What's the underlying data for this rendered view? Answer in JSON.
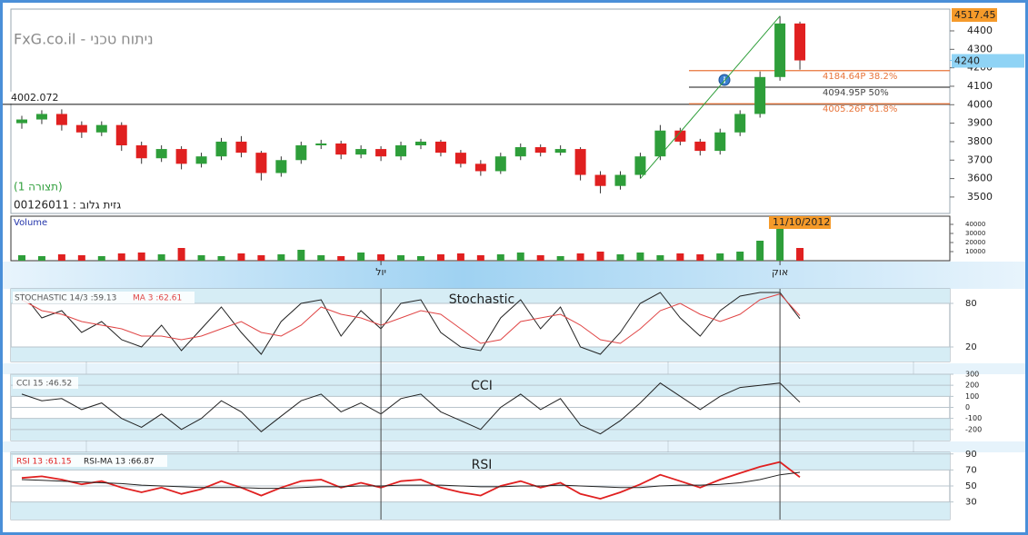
{
  "chart_data": [
    {
      "type": "candlestick",
      "title": "FxG.co.il - ניתוח טכני",
      "subtitle": "(תצורה 1)",
      "security": "00126011 : גזית גלוב",
      "categories": [
        null,
        null,
        null,
        null,
        null,
        null,
        null,
        null,
        null,
        null,
        null,
        null,
        null,
        null,
        null,
        null,
        null,
        null,
        "יול",
        null,
        null,
        null,
        null,
        null,
        null,
        null,
        null,
        null,
        null,
        null,
        null,
        null,
        null,
        null,
        null,
        null,
        null,
        null,
        "אוק",
        null
      ],
      "open": [
        3900,
        3920,
        3950,
        3890,
        3850,
        3890,
        3780,
        3710,
        3760,
        3680,
        3720,
        3800,
        3740,
        3630,
        3700,
        3780,
        3790,
        3730,
        3760,
        3720,
        3780,
        3800,
        3740,
        3680,
        3640,
        3720,
        3770,
        3740,
        3760,
        3620,
        3560,
        3620,
        3720,
        3860,
        3800,
        3750,
        3850,
        3950,
        4150,
        4440
      ],
      "high": [
        3940,
        3970,
        3975,
        3910,
        3910,
        3905,
        3800,
        3780,
        3775,
        3740,
        3820,
        3830,
        3750,
        3720,
        3800,
        3810,
        3805,
        3780,
        3775,
        3800,
        3815,
        3810,
        3755,
        3700,
        3740,
        3790,
        3785,
        3780,
        3770,
        3640,
        3640,
        3740,
        3890,
        3875,
        3815,
        3870,
        3970,
        4180,
        4480,
        4450
      ],
      "low": [
        3870,
        3895,
        3860,
        3820,
        3830,
        3750,
        3680,
        3690,
        3650,
        3660,
        3700,
        3715,
        3590,
        3610,
        3680,
        3760,
        3705,
        3710,
        3695,
        3700,
        3760,
        3720,
        3660,
        3615,
        3625,
        3700,
        3720,
        3725,
        3590,
        3520,
        3540,
        3600,
        3700,
        3780,
        3725,
        3730,
        3830,
        3930,
        4130,
        4190
      ],
      "close": [
        3920,
        3950,
        3890,
        3850,
        3890,
        3780,
        3710,
        3760,
        3680,
        3720,
        3800,
        3740,
        3630,
        3700,
        3780,
        3790,
        3730,
        3760,
        3720,
        3780,
        3800,
        3740,
        3680,
        3640,
        3720,
        3770,
        3740,
        3760,
        3620,
        3560,
        3620,
        3720,
        3860,
        3800,
        3750,
        3850,
        3950,
        4150,
        4440,
        4240
      ],
      "up_color": "#2e9e3a",
      "down_color": "#e02020",
      "ylim": [
        3411,
        4518
      ],
      "yticks": [
        3500,
        3600,
        3700,
        3800,
        3900,
        4000,
        4100,
        4200,
        4300,
        4400
      ],
      "high_marker": 4517.45,
      "last_price": 4240,
      "reference_line": 4002.072,
      "fib_levels": [
        {
          "value": 4184.64,
          "label": "4184.64P  38.2%",
          "color": "#e8743a"
        },
        {
          "value": 4094.95,
          "label": "4094.95P  50%",
          "color": "#444444"
        },
        {
          "value": 4005.26,
          "label": "4005.26P  61.8%",
          "color": "#e8743a"
        }
      ]
    },
    {
      "type": "bar",
      "title": "Volume",
      "annotation": "11/10/2012",
      "values": [
        6000,
        5000,
        7000,
        6000,
        5000,
        8000,
        9000,
        7000,
        14000,
        6000,
        5000,
        8000,
        6000,
        7000,
        12000,
        6000,
        5000,
        9000,
        7000,
        6000,
        5000,
        7000,
        8000,
        6000,
        7000,
        9000,
        6000,
        5000,
        8000,
        10000,
        7000,
        9000,
        6000,
        8000,
        7000,
        8000,
        10000,
        22000,
        48000,
        14000
      ],
      "ylim": [
        0,
        49000
      ],
      "yticks": [
        10000,
        20000,
        30000,
        40000
      ]
    },
    {
      "type": "line",
      "title": "Stochastic",
      "series": [
        {
          "name": "STOCHASTIC 14/3 :59.13",
          "color": "#222222",
          "values": [
            95,
            60,
            70,
            40,
            55,
            30,
            20,
            50,
            15,
            45,
            75,
            40,
            10,
            55,
            80,
            85,
            35,
            70,
            45,
            80,
            85,
            40,
            20,
            15,
            60,
            85,
            45,
            75,
            20,
            10,
            40,
            80,
            95,
            60,
            35,
            70,
            90,
            95,
            95,
            59
          ]
        },
        {
          "name": "MA 3 :62.61",
          "color": "#e04545",
          "values": [
            85,
            70,
            65,
            55,
            50,
            45,
            35,
            35,
            30,
            35,
            45,
            55,
            40,
            35,
            50,
            75,
            65,
            60,
            50,
            60,
            70,
            65,
            45,
            25,
            30,
            55,
            60,
            65,
            50,
            30,
            25,
            45,
            70,
            80,
            65,
            55,
            65,
            85,
            93,
            63
          ]
        }
      ],
      "ylim": [
        0,
        100
      ],
      "yticks": [
        80,
        20
      ]
    },
    {
      "type": "line",
      "title": "CCI",
      "series": [
        {
          "name": "CCI 15 :46.52",
          "color": "#222222",
          "values": [
            120,
            60,
            80,
            -20,
            40,
            -100,
            -180,
            -60,
            -200,
            -100,
            60,
            -40,
            -220,
            -80,
            60,
            120,
            -40,
            40,
            -60,
            80,
            120,
            -40,
            -120,
            -200,
            0,
            120,
            -20,
            80,
            -160,
            -240,
            -120,
            40,
            220,
            100,
            -20,
            100,
            180,
            200,
            220,
            47
          ]
        }
      ],
      "ylim": [
        -300,
        300
      ],
      "yticks": [
        300,
        200,
        100,
        0,
        -100,
        -200
      ]
    },
    {
      "type": "line",
      "title": "RSI",
      "series": [
        {
          "name": "RSI 13 :61.15",
          "color": "#e02020",
          "values": [
            60,
            62,
            58,
            52,
            56,
            48,
            42,
            48,
            40,
            46,
            56,
            48,
            38,
            48,
            56,
            58,
            48,
            54,
            48,
            56,
            58,
            48,
            42,
            38,
            50,
            56,
            48,
            54,
            40,
            34,
            42,
            52,
            64,
            56,
            48,
            58,
            66,
            74,
            80,
            61
          ]
        },
        {
          "name": "RSI-MA 13 :66.87",
          "color": "#222222",
          "values": [
            58,
            57,
            56,
            55,
            54,
            53,
            51,
            50,
            49,
            48,
            48,
            48,
            47,
            47,
            48,
            49,
            49,
            50,
            50,
            51,
            51,
            51,
            50,
            49,
            49,
            50,
            50,
            51,
            50,
            49,
            48,
            48,
            50,
            51,
            51,
            52,
            54,
            58,
            64,
            67
          ]
        }
      ],
      "ylim": [
        8,
        92
      ],
      "yticks": [
        90,
        70,
        50,
        30
      ]
    }
  ]
}
